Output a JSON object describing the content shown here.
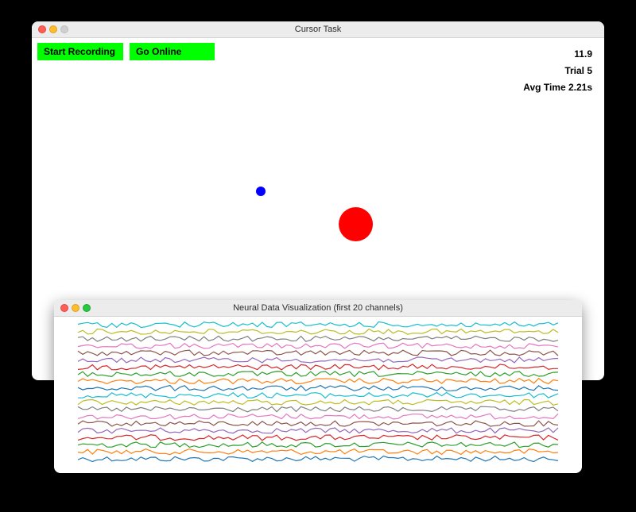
{
  "cursor_window": {
    "title": "Cursor Task",
    "buttons": {
      "start_recording": "Start Recording",
      "go_online": "Go Online"
    },
    "stats": {
      "value": "11.9",
      "trial": "Trial 5",
      "avg_time": "Avg Time 2.21s"
    }
  },
  "neural_window": {
    "title": "Neural Data Visualization (first 20 channels)",
    "channel_count": 20,
    "samples_per_channel": 100
  },
  "colors": {
    "button_bg": "#00ff00",
    "cursor": "#0000ff",
    "target": "#ff0000",
    "channels": [
      "#1f77b4",
      "#ff7f0e",
      "#2ca02c",
      "#d62728",
      "#9467bd",
      "#8c564b",
      "#e377c2",
      "#7f7f7f",
      "#bcbd22",
      "#17becf",
      "#1f77b4",
      "#ff7f0e",
      "#2ca02c",
      "#d62728",
      "#9467bd",
      "#8c564b",
      "#e377c2",
      "#7f7f7f",
      "#bcbd22",
      "#17becf"
    ]
  }
}
